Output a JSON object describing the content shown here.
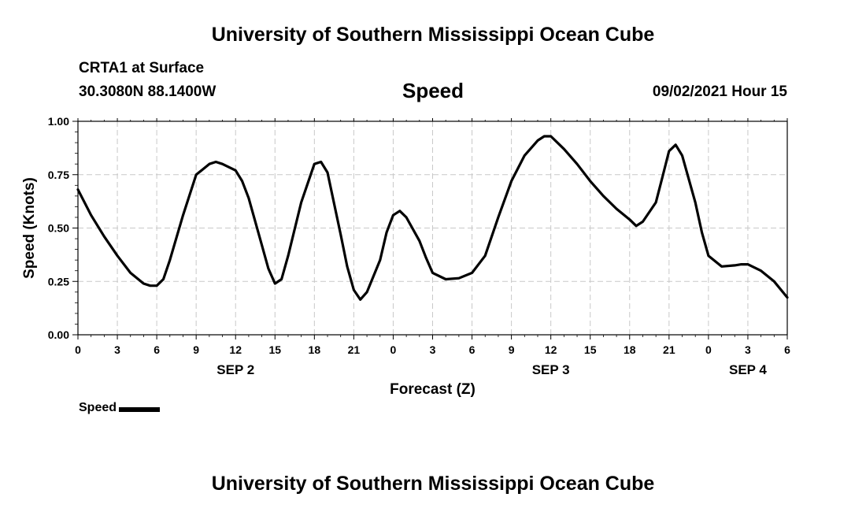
{
  "header": {
    "title_top": "University of Southern Mississippi Ocean Cube",
    "station": "CRTA1 at Surface",
    "coords": "30.3080N  88.1400W",
    "variable": "Speed",
    "datetime": "09/02/2021 Hour 15"
  },
  "footer": {
    "title_bottom": "University of Southern Mississippi Ocean Cube"
  },
  "legend": {
    "label": "Speed",
    "color": "#000000"
  },
  "chart_data": {
    "type": "line",
    "title": "Speed",
    "xlabel": "Forecast (Z)",
    "ylabel": "Speed (Knots)",
    "xlim": [
      0,
      54
    ],
    "ylim": [
      0,
      1.0
    ],
    "grid": true,
    "x_ticks": [
      0,
      3,
      6,
      9,
      12,
      15,
      18,
      21,
      24,
      27,
      30,
      33,
      36,
      39,
      42,
      45,
      48,
      51,
      54
    ],
    "x_tick_labels": [
      "0",
      "3",
      "6",
      "9",
      "12",
      "15",
      "18",
      "21",
      "0",
      "3",
      "6",
      "9",
      "12",
      "15",
      "18",
      "21",
      "0",
      "3",
      "6"
    ],
    "y_ticks": [
      0,
      0.25,
      0.5,
      0.75,
      1.0
    ],
    "y_tick_labels": [
      "0.00",
      "0.25",
      "0.50",
      "0.75",
      "1.00"
    ],
    "date_labels": [
      {
        "x": 12,
        "label": "SEP 2"
      },
      {
        "x": 36,
        "label": "SEP 3"
      },
      {
        "x": 51,
        "label": "SEP 4"
      }
    ],
    "series": [
      {
        "name": "Speed",
        "color": "#000000",
        "x": [
          0,
          1,
          2,
          3,
          4,
          5,
          5.5,
          6,
          6.5,
          7,
          8,
          9,
          10,
          10.5,
          11,
          12,
          12.5,
          13,
          14,
          14.5,
          15,
          15.5,
          16,
          17,
          18,
          18.5,
          19,
          20,
          20.5,
          21,
          21.5,
          22,
          23,
          23.5,
          24,
          24.5,
          25,
          26,
          26.5,
          27,
          28,
          29,
          30,
          31,
          32,
          33,
          34,
          35,
          35.5,
          36,
          37,
          38,
          39,
          40,
          41,
          42,
          42.5,
          43,
          44,
          44.5,
          45,
          45.5,
          46,
          47,
          47.5,
          48,
          49,
          50,
          50.5,
          51,
          52,
          53,
          54
        ],
        "values": [
          0.68,
          0.56,
          0.46,
          0.37,
          0.29,
          0.24,
          0.23,
          0.23,
          0.26,
          0.35,
          0.56,
          0.75,
          0.8,
          0.81,
          0.8,
          0.77,
          0.72,
          0.64,
          0.42,
          0.31,
          0.24,
          0.26,
          0.37,
          0.62,
          0.8,
          0.81,
          0.76,
          0.47,
          0.32,
          0.21,
          0.165,
          0.2,
          0.35,
          0.48,
          0.56,
          0.58,
          0.55,
          0.44,
          0.36,
          0.29,
          0.26,
          0.265,
          0.29,
          0.37,
          0.55,
          0.72,
          0.84,
          0.91,
          0.93,
          0.93,
          0.87,
          0.8,
          0.72,
          0.65,
          0.59,
          0.54,
          0.51,
          0.53,
          0.62,
          0.74,
          0.86,
          0.89,
          0.84,
          0.62,
          0.48,
          0.37,
          0.32,
          0.325,
          0.33,
          0.33,
          0.3,
          0.25,
          0.175
        ]
      }
    ]
  }
}
